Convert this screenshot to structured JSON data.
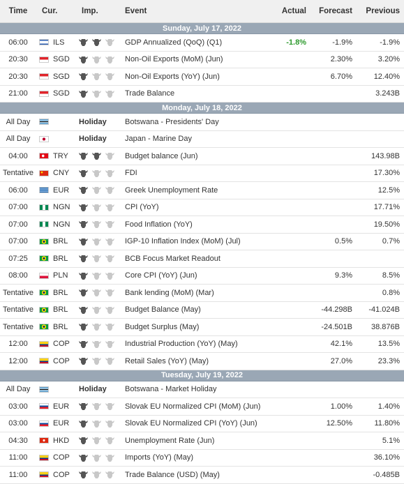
{
  "columns": {
    "time": "Time",
    "cur": "Cur.",
    "imp": "Imp.",
    "event": "Event",
    "actual": "Actual",
    "forecast": "Forecast",
    "previous": "Previous"
  },
  "days": [
    {
      "date": "Sunday, July 17, 2022",
      "rows": [
        {
          "time": "06:00",
          "cur": "ILS",
          "flag": "israel-flag-icon",
          "imp": 2,
          "event": "GDP Annualized (QoQ) (Q1)",
          "actual": "-1.8%",
          "actual_color": "#2d9a2d",
          "forecast": "-1.9%",
          "previous": "-1.9%"
        },
        {
          "time": "20:30",
          "cur": "SGD",
          "flag": "singapore-flag-icon",
          "imp": 1,
          "event": "Non-Oil Exports (MoM) (Jun)",
          "actual": "",
          "forecast": "2.30%",
          "previous": "3.20%"
        },
        {
          "time": "20:30",
          "cur": "SGD",
          "flag": "singapore-flag-icon",
          "imp": 1,
          "event": "Non-Oil Exports (YoY) (Jun)",
          "actual": "",
          "forecast": "6.70%",
          "previous": "12.40%"
        },
        {
          "time": "21:00",
          "cur": "SGD",
          "flag": "singapore-flag-icon",
          "imp": 1,
          "event": "Trade Balance",
          "actual": "",
          "forecast": "",
          "previous": "3.243B"
        }
      ]
    },
    {
      "date": "Monday, July 18, 2022",
      "rows": [
        {
          "time": "All Day",
          "cur": "",
          "flag": "botswana-flag-icon",
          "holiday": "Holiday",
          "event": "Botswana - Presidents' Day",
          "actual": "",
          "forecast": "",
          "previous": ""
        },
        {
          "time": "All Day",
          "cur": "",
          "flag": "japan-flag-icon",
          "holiday": "Holiday",
          "event": "Japan - Marine Day",
          "actual": "",
          "forecast": "",
          "previous": ""
        },
        {
          "time": "04:00",
          "cur": "TRY",
          "flag": "turkey-flag-icon",
          "imp": 2,
          "event": "Budget balance (Jun)",
          "actual": "",
          "forecast": "",
          "previous": "143.98B"
        },
        {
          "time": "Tentative",
          "cur": "CNY",
          "flag": "china-flag-icon",
          "imp": 1,
          "event": "FDI",
          "actual": "",
          "forecast": "",
          "previous": "17.30%"
        },
        {
          "time": "06:00",
          "cur": "EUR",
          "flag": "greece-flag-icon",
          "imp": 1,
          "event": "Greek Unemployment Rate",
          "actual": "",
          "forecast": "",
          "previous": "12.5%"
        },
        {
          "time": "07:00",
          "cur": "NGN",
          "flag": "nigeria-flag-icon",
          "imp": 1,
          "event": "CPI (YoY)",
          "actual": "",
          "forecast": "",
          "previous": "17.71%"
        },
        {
          "time": "07:00",
          "cur": "NGN",
          "flag": "nigeria-flag-icon",
          "imp": 1,
          "event": "Food Inflation (YoY)",
          "actual": "",
          "forecast": "",
          "previous": "19.50%"
        },
        {
          "time": "07:00",
          "cur": "BRL",
          "flag": "brazil-flag-icon",
          "imp": 1,
          "event": "IGP-10 Inflation Index (MoM) (Jul)",
          "actual": "",
          "forecast": "0.5%",
          "previous": "0.7%"
        },
        {
          "time": "07:25",
          "cur": "BRL",
          "flag": "brazil-flag-icon",
          "imp": 1,
          "event": "BCB Focus Market Readout",
          "actual": "",
          "forecast": "",
          "previous": ""
        },
        {
          "time": "08:00",
          "cur": "PLN",
          "flag": "poland-flag-icon",
          "imp": 1,
          "event": "Core CPI (YoY) (Jun)",
          "actual": "",
          "forecast": "9.3%",
          "previous": "8.5%"
        },
        {
          "time": "Tentative",
          "cur": "BRL",
          "flag": "brazil-flag-icon",
          "imp": 1,
          "event": "Bank lending (MoM) (Mar)",
          "actual": "",
          "forecast": "",
          "previous": "0.8%"
        },
        {
          "time": "Tentative",
          "cur": "BRL",
          "flag": "brazil-flag-icon",
          "imp": 1,
          "event": "Budget Balance (May)",
          "actual": "",
          "forecast": "-44.298B",
          "previous": "-41.024B"
        },
        {
          "time": "Tentative",
          "cur": "BRL",
          "flag": "brazil-flag-icon",
          "imp": 1,
          "event": "Budget Surplus (May)",
          "actual": "",
          "forecast": "-24.501B",
          "previous": "38.876B"
        },
        {
          "time": "12:00",
          "cur": "COP",
          "flag": "colombia-flag-icon",
          "imp": 1,
          "event": "Industrial Production (YoY) (May)",
          "actual": "",
          "forecast": "42.1%",
          "previous": "13.5%"
        },
        {
          "time": "12:00",
          "cur": "COP",
          "flag": "colombia-flag-icon",
          "imp": 1,
          "event": "Retail Sales (YoY) (May)",
          "actual": "",
          "forecast": "27.0%",
          "previous": "23.3%"
        }
      ]
    },
    {
      "date": "Tuesday, July 19, 2022",
      "rows": [
        {
          "time": "All Day",
          "cur": "",
          "flag": "botswana-flag-icon",
          "holiday": "Holiday",
          "event": "Botswana - Market Holiday",
          "actual": "",
          "forecast": "",
          "previous": ""
        },
        {
          "time": "03:00",
          "cur": "EUR",
          "flag": "slovakia-flag-icon",
          "imp": 1,
          "event": "Slovak EU Normalized CPI (MoM) (Jun)",
          "actual": "",
          "forecast": "1.00%",
          "previous": "1.40%"
        },
        {
          "time": "03:00",
          "cur": "EUR",
          "flag": "slovakia-flag-icon",
          "imp": 1,
          "event": "Slovak EU Normalized CPI (YoY) (Jun)",
          "actual": "",
          "forecast": "12.50%",
          "previous": "11.80%"
        },
        {
          "time": "04:30",
          "cur": "HKD",
          "flag": "hongkong-flag-icon",
          "imp": 1,
          "event": "Unemployment Rate (Jun)",
          "actual": "",
          "forecast": "",
          "previous": "5.1%"
        },
        {
          "time": "11:00",
          "cur": "COP",
          "flag": "colombia-flag-icon",
          "imp": 1,
          "event": "Imports (YoY) (May)",
          "actual": "",
          "forecast": "",
          "previous": "36.10%"
        },
        {
          "time": "11:00",
          "cur": "COP",
          "flag": "colombia-flag-icon",
          "imp": 1,
          "event": "Trade Balance (USD) (May)",
          "actual": "",
          "forecast": "",
          "previous": "-0.485B"
        }
      ]
    }
  ],
  "flag_styles": {
    "israel-flag-icon": "linear-gradient(#2a5db0 0 20%,#fff 20% 80%,#2a5db0 80%)",
    "singapore-flag-icon": "linear-gradient(#e0242b 0 50%,#fff 50%)",
    "botswana-flag-icon": "linear-gradient(#6da9d2 0 38%,#fff 38% 42%,#000 42% 58%,#fff 58% 62%,#6da9d2 62%)",
    "japan-flag-icon": "radial-gradient(circle,#bc002d 0 30%,#fff 32%)",
    "turkey-flag-icon": "radial-gradient(circle at 40% 50%,#fff 0 22%,#e30a17 24%)",
    "china-flag-icon": "radial-gradient(circle at 25% 30%,#ffde00 0 12%,#de2910 14%)",
    "greece-flag-icon": "repeating-linear-gradient(#0d5eaf 0 11%,#fff 11% 22%)",
    "nigeria-flag-icon": "linear-gradient(90deg,#008751 0 33%,#fff 33% 66%,#008751 66%)",
    "brazil-flag-icon": "radial-gradient(circle,#002776 0 20%,#ffdf00 22% 45%,#009c3b 47%)",
    "poland-flag-icon": "linear-gradient(#fff 0 50%,#dc143c 50%)",
    "colombia-flag-icon": "linear-gradient(#fcd116 0 50%,#003893 50% 75%,#ce1126 75%)",
    "slovakia-flag-icon": "linear-gradient(#fff 0 33%,#0b4ea2 33% 66%,#ee1c25 66%)",
    "hongkong-flag-icon": "radial-gradient(circle,#fff 0 22%,#de2910 24%)"
  },
  "colors": {
    "date_bar": "#9aa7b5",
    "bull_on": "#555555",
    "bull_off": "#c8c8c8"
  }
}
